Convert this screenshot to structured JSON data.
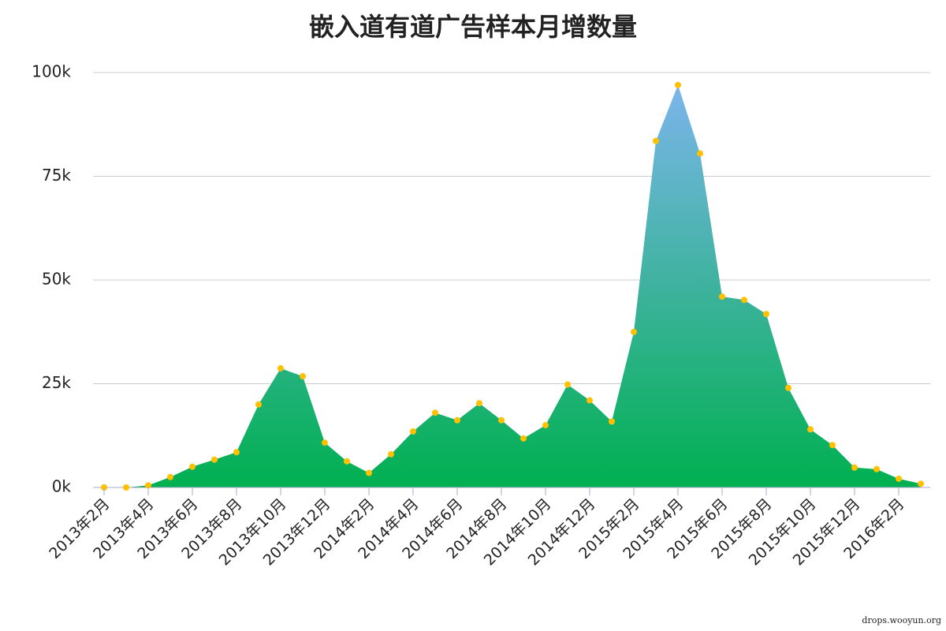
{
  "chart_data": {
    "type": "area",
    "title": "嵌入道有道广告样本月增数量",
    "categories": [
      "2013年2月",
      null,
      "2013年4月",
      null,
      "2013年6月",
      null,
      "2013年8月",
      null,
      "2013年10月",
      null,
      "2013年12月",
      null,
      "2014年2月",
      null,
      "2014年4月",
      null,
      "2014年6月",
      null,
      "2014年8月",
      null,
      "2014年10月",
      null,
      "2014年12月",
      null,
      "2015年2月",
      null,
      "2015年4月",
      null,
      "2015年6月",
      null,
      "2015年8月",
      null,
      "2015年10月",
      null,
      "2015年12月",
      null,
      "2016年2月",
      null
    ],
    "series": [
      {
        "color": "#00b050",
        "gradient_top": "#7cb5ec",
        "marker_color": "#ffc000",
        "values": [
          0,
          0,
          0.5,
          2.5,
          5,
          6.7,
          8.5,
          20,
          28.7,
          26.8,
          10.8,
          6.3,
          3.5,
          8,
          13.5,
          18,
          16.2,
          20.3,
          16.2,
          11.8,
          15,
          24.8,
          21,
          15.9,
          37.5,
          83.5,
          97,
          80.5,
          46,
          45.2,
          41.8,
          24,
          14,
          10.2,
          4.8,
          4.4,
          2.1,
          0.9
        ]
      }
    ],
    "ylim": [
      0,
      100
    ],
    "yticks": [
      {
        "value": 0,
        "label": "0k"
      },
      {
        "value": 25,
        "label": "25k"
      },
      {
        "value": 50,
        "label": "50k"
      },
      {
        "value": 75,
        "label": "75k"
      },
      {
        "value": 100,
        "label": "100k"
      }
    ],
    "grid": true,
    "watermark": "drops.wooyun.org"
  }
}
